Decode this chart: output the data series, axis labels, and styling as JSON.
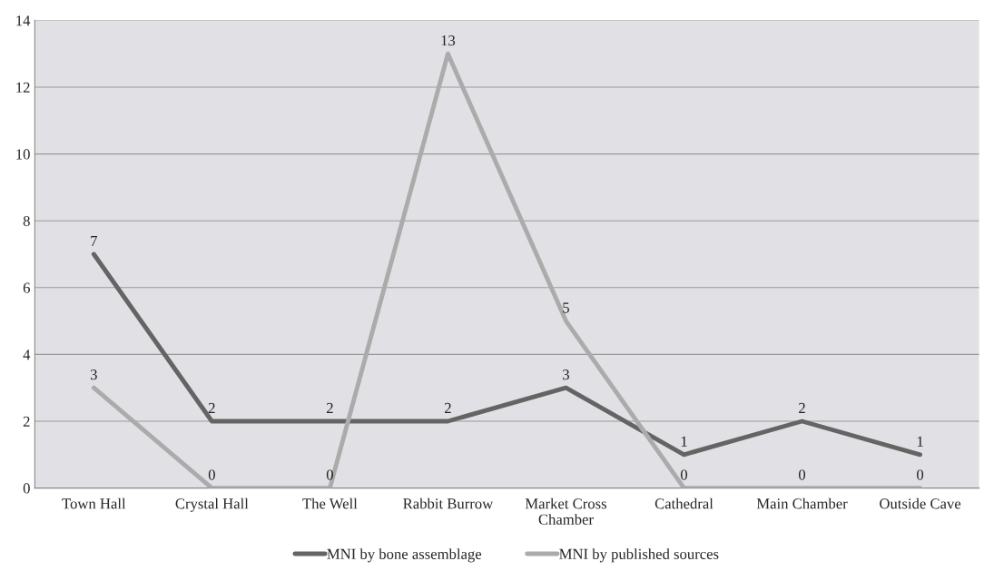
{
  "chart_data": {
    "type": "line",
    "categories": [
      "Town Hall",
      "Crystal Hall",
      "The Well",
      "Rabbit Burrow",
      "Market Cross\nChamber",
      "Cathedral",
      "Main Chamber",
      "Outside Cave"
    ],
    "series": [
      {
        "name": "MNI by bone assemblage",
        "color": "#646464",
        "values": [
          7,
          2,
          2,
          2,
          3,
          1,
          2,
          1
        ]
      },
      {
        "name": "MNI by published sources",
        "color": "#ababab",
        "values": [
          3,
          0,
          0,
          13,
          5,
          0,
          0,
          0
        ]
      }
    ],
    "ylim": [
      0,
      14
    ],
    "yticks": [
      0,
      2,
      4,
      6,
      8,
      10,
      12,
      14
    ],
    "grid": "y",
    "legend": "bottom",
    "data_labels": true,
    "marker": "none",
    "line_style": "solid"
  }
}
